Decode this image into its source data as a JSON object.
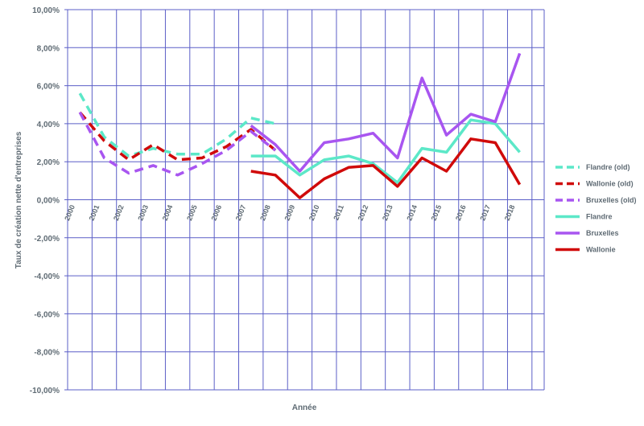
{
  "chart_data": {
    "type": "line",
    "title": "",
    "xlabel": "Année",
    "ylabel": "Taux de création nette d'entreprises",
    "ylim": [
      -10,
      10
    ],
    "y_ticks": [
      10,
      8,
      6,
      4,
      2,
      0,
      -2,
      -4,
      -6,
      -8,
      -10
    ],
    "y_tick_labels": [
      "10,00%",
      "8,00%",
      "6,00%",
      "4,00%",
      "2,00%",
      "0,00%",
      "-2,00%",
      "-4,00%",
      "-6,00%",
      "-8,00%",
      "-10,00%"
    ],
    "categories": [
      "2000",
      "2001",
      "2002",
      "2003",
      "2004",
      "2005",
      "2006",
      "2007",
      "2008",
      "2009",
      "2010",
      "2011",
      "2012",
      "2013",
      "2014",
      "2015",
      "2016",
      "2017",
      "2018"
    ],
    "grid": true,
    "grid_color": "#5b5fc7",
    "legend_position": "right",
    "series": [
      {
        "name": "Flandre (old)",
        "color": "#5ce8c8",
        "dashed": true,
        "values": [
          5.6,
          3.3,
          2.3,
          2.7,
          2.4,
          2.4,
          3.2,
          4.3,
          4.0,
          null,
          null,
          null,
          null,
          null,
          null,
          null,
          null,
          null,
          null
        ]
      },
      {
        "name": "Wallonie (old)",
        "color": "#d00a0a",
        "dashed": true,
        "values": [
          4.6,
          3.1,
          2.1,
          2.9,
          2.1,
          2.2,
          2.8,
          3.7,
          2.6,
          null,
          null,
          null,
          null,
          null,
          null,
          null,
          null,
          null,
          null
        ]
      },
      {
        "name": "Bruxelles (old)",
        "color": "#a855f0",
        "dashed": true,
        "values": [
          4.6,
          2.2,
          1.4,
          1.8,
          1.3,
          1.9,
          2.6,
          3.6,
          2.6,
          null,
          null,
          null,
          null,
          null,
          null,
          null,
          null,
          null,
          null
        ]
      },
      {
        "name": "Flandre",
        "color": "#5ce8c8",
        "dashed": false,
        "values": [
          null,
          null,
          null,
          null,
          null,
          null,
          null,
          2.3,
          2.3,
          1.3,
          2.1,
          2.3,
          1.9,
          0.9,
          2.7,
          2.5,
          4.2,
          4.0,
          2.5
        ]
      },
      {
        "name": "Bruxelles",
        "color": "#a855f0",
        "dashed": false,
        "values": [
          null,
          null,
          null,
          null,
          null,
          null,
          null,
          3.9,
          2.9,
          1.5,
          3.0,
          3.2,
          3.5,
          2.2,
          6.4,
          3.4,
          4.5,
          4.1,
          7.7
        ]
      },
      {
        "name": "Wallonie",
        "color": "#d00a0a",
        "dashed": false,
        "values": [
          null,
          null,
          null,
          null,
          null,
          null,
          null,
          1.5,
          1.3,
          0.1,
          1.1,
          1.7,
          1.8,
          0.7,
          2.2,
          1.5,
          3.2,
          3.0,
          0.8
        ]
      }
    ]
  }
}
